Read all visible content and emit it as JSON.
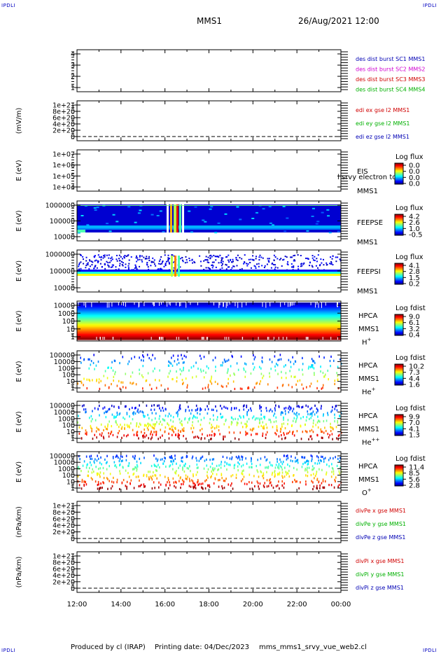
{
  "header": {
    "corner_label": "IPDLI",
    "spacecraft": "MMS1",
    "datetime": "26/Aug/2021 12:00"
  },
  "footer": {
    "produced_by": "Produced by cl (IRAP)",
    "printing_date": "Printing date: 04/Dec/2023",
    "filename": "mms_mms1_srvy_vue_web2.cl"
  },
  "colors": {
    "blue": "#0000b4",
    "magenta": "#d000d0",
    "red": "#d00000",
    "green": "#00b000"
  },
  "chart_data": {
    "type": "heatmap",
    "x_axis": {
      "ticks": [
        "12:00",
        "14:00",
        "16:00",
        "18:00",
        "20:00",
        "22:00",
        "00:00"
      ],
      "range": [
        "2021-08-26T12:00",
        "2021-08-27T00:00"
      ]
    },
    "panels": [
      {
        "id": "burst",
        "kind": "lines",
        "ylabel": "",
        "yticks": [
          "4",
          "3",
          "2",
          "1"
        ],
        "ylim": [
          0.5,
          4.5
        ],
        "legend": [
          {
            "text": "des dist burst SC1 MMS1",
            "color": "#0000b4"
          },
          {
            "text": "des dist burst SC2 MMS2",
            "color": "#d000d0"
          },
          {
            "text": "des dist burst SC3 MMS3",
            "color": "#d00000"
          },
          {
            "text": "des dist burst SC4 MMS4",
            "color": "#00b000"
          }
        ]
      },
      {
        "id": "edi",
        "kind": "lines",
        "ylabel": "(mV/m)",
        "yticks": [
          "1e+21",
          "8e+20",
          "6e+20",
          "4e+20",
          "2e+20",
          "0"
        ],
        "ylim": [
          0,
          1e+21
        ],
        "dashed_zero": true,
        "legend": [
          {
            "text": "edi ex gse l2 MMS1",
            "color": "#d00000"
          },
          {
            "text": "edi ey gse l2 MMS1",
            "color": "#00b000"
          },
          {
            "text": "edi ez gse l2 MMS1",
            "color": "#0000b4"
          }
        ]
      },
      {
        "id": "eis",
        "kind": "spectrogram",
        "ylabel": "E (eV)",
        "yticks": [
          "1e+07",
          "1e+06",
          "1e+05",
          "1e+04"
        ],
        "ylim": [
          10000,
          10000000
        ],
        "labels": [
          "EIS",
          "MMS1"
        ],
        "overlay_text": "l srvy electron to",
        "colorbar_title": "Log flux",
        "colorbar_ticks": [
          "0.0",
          "0.0",
          "0.0",
          "0.0"
        ]
      },
      {
        "id": "feepse",
        "kind": "spectrogram",
        "ylabel": "E (eV)",
        "yticks": [
          "1000000",
          "100000",
          "10000"
        ],
        "ylim": [
          10000,
          1000000
        ],
        "labels": [
          "FEEPSE",
          "MMS1"
        ],
        "colorbar_title": "Log flux",
        "colorbar_ticks": [
          "4.2",
          "2.6",
          "1.0",
          "-0.5"
        ]
      },
      {
        "id": "feepsi",
        "kind": "spectrogram",
        "ylabel": "E (eV)",
        "yticks": [
          "1000000",
          "100000",
          "10000"
        ],
        "ylim": [
          10000,
          1000000
        ],
        "labels": [
          "FEEPSI",
          "MMS1"
        ],
        "colorbar_title": "Log flux",
        "colorbar_ticks": [
          "4.1",
          "2.8",
          "1.5",
          "0.2"
        ]
      },
      {
        "id": "hpca_h",
        "kind": "spectrogram",
        "ylabel": "E (eV)",
        "yticks": [
          "10000",
          "1000",
          "100",
          "10",
          "1"
        ],
        "ylim": [
          1,
          40000
        ],
        "labels": [
          "HPCA",
          "MMS1"
        ],
        "species": "H",
        "species_sup": "+",
        "colorbar_title": "Log fdist",
        "colorbar_ticks": [
          "9.0",
          "6.1",
          "3.2",
          "0.4"
        ]
      },
      {
        "id": "hpca_he",
        "kind": "spectrogram",
        "ylabel": "E (eV)",
        "yticks": [
          "100000",
          "10000",
          "1000",
          "100",
          "10",
          "1"
        ],
        "ylim": [
          1,
          100000
        ],
        "labels": [
          "HPCA",
          "MMS1"
        ],
        "species": "He",
        "species_sup": "+",
        "colorbar_title": "Log fdist",
        "colorbar_ticks": [
          "10.2",
          "7.3",
          "4.4",
          "1.6"
        ]
      },
      {
        "id": "hpca_hepp",
        "kind": "spectrogram",
        "ylabel": "E (eV)",
        "yticks": [
          "100000",
          "10000",
          "1000",
          "100",
          "10",
          "1"
        ],
        "ylim": [
          1,
          100000
        ],
        "labels": [
          "HPCA",
          "MMS1"
        ],
        "species": "He",
        "species_sup": "++",
        "colorbar_title": "Log fdist",
        "colorbar_ticks": [
          "9.9",
          "7.0",
          "4.1",
          "1.3"
        ]
      },
      {
        "id": "hpca_o",
        "kind": "spectrogram",
        "ylabel": "E (eV)",
        "yticks": [
          "100000",
          "10000",
          "1000",
          "100",
          "10",
          "1"
        ],
        "ylim": [
          1,
          100000
        ],
        "labels": [
          "HPCA",
          "MMS1"
        ],
        "species": "O",
        "species_sup": "+",
        "colorbar_title": "Log fdist",
        "colorbar_ticks": [
          "11.4",
          "8.5",
          "5.6",
          "2.8"
        ]
      },
      {
        "id": "divpe",
        "kind": "lines",
        "ylabel": "(nPa/km)",
        "yticks": [
          "1e+21",
          "8e+20",
          "6e+20",
          "4e+20",
          "2e+20",
          "0"
        ],
        "ylim": [
          0,
          1e+21
        ],
        "dashed_zero": true,
        "legend": [
          {
            "text": "divPe x gse MMS1",
            "color": "#d00000"
          },
          {
            "text": "divPe y gse MMS1",
            "color": "#00b000"
          },
          {
            "text": "divPe z gse MMS1",
            "color": "#0000b4"
          }
        ]
      },
      {
        "id": "divpi",
        "kind": "lines",
        "ylabel": "(nPa/km)",
        "yticks": [
          "1e+21",
          "8e+20",
          "6e+20",
          "4e+20",
          "2e+20",
          "0"
        ],
        "ylim": [
          0,
          1e+21
        ],
        "dashed_zero": true,
        "legend": [
          {
            "text": "divPi x gse MMS1",
            "color": "#d00000"
          },
          {
            "text": "divPi y gse MMS1",
            "color": "#00b000"
          },
          {
            "text": "divPi z gse MMS1",
            "color": "#0000b4"
          }
        ]
      }
    ]
  }
}
